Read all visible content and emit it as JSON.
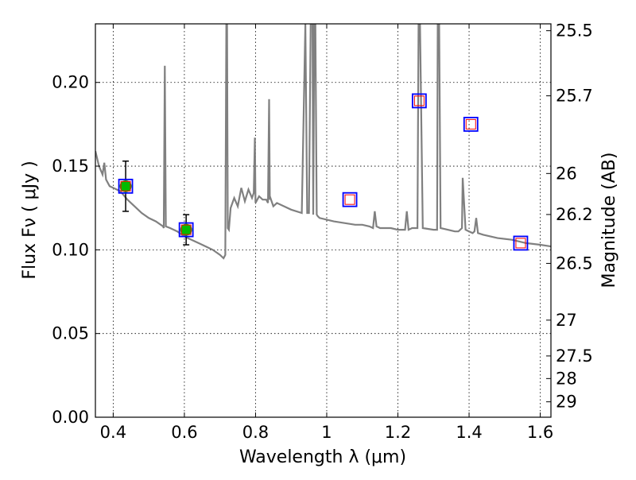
{
  "chart_data": {
    "type": "line",
    "xlabel": "Wavelength  λ (μm)",
    "ylabel": "Flux  Fν  ( μJy )",
    "y2label": "Magnitude (AB)",
    "xlim": [
      0.35,
      1.63
    ],
    "ylim": [
      0.0,
      0.235
    ],
    "grid": true,
    "x_ticks": [
      0.4,
      0.6,
      0.8,
      1.0,
      1.2,
      1.4,
      1.6
    ],
    "x_tick_labels": [
      "0.4",
      "0.6",
      "0.8",
      "1",
      "1.2",
      "1.4",
      "1.6"
    ],
    "y_ticks": [
      0.0,
      0.05,
      0.1,
      0.15,
      0.2
    ],
    "y_tick_labels": [
      "0.00",
      "0.05",
      "0.10",
      "0.15",
      "0.20"
    ],
    "mag_ticks": [
      {
        "label": "25.5",
        "flux": 0.2309
      },
      {
        "label": "25.7",
        "flux": 0.192
      },
      {
        "label": "26",
        "flux": 0.1456
      },
      {
        "label": "26.2",
        "flux": 0.1211
      },
      {
        "label": "26.5",
        "flux": 0.0919
      },
      {
        "label": "27",
        "flux": 0.058
      },
      {
        "label": "27.5",
        "flux": 0.0366
      },
      {
        "label": "28",
        "flux": 0.0231
      },
      {
        "label": "29",
        "flux": 0.0092
      }
    ],
    "colors": {
      "model": "#808080",
      "obs_marker": "#00bb00",
      "box_edge": "#0000ff",
      "inner_box": "#ff0000",
      "errorbar": "#000000"
    },
    "series": [
      {
        "kind": "model-spectrum",
        "x": [
          0.35,
          0.36,
          0.37,
          0.375,
          0.38,
          0.39,
          0.4,
          0.42,
          0.44,
          0.46,
          0.48,
          0.5,
          0.52,
          0.54,
          0.542,
          0.545,
          0.548,
          0.56,
          0.58,
          0.6,
          0.62,
          0.64,
          0.66,
          0.68,
          0.7,
          0.71,
          0.715,
          0.718,
          0.72,
          0.722,
          0.725,
          0.73,
          0.74,
          0.75,
          0.76,
          0.77,
          0.78,
          0.79,
          0.795,
          0.798,
          0.8,
          0.81,
          0.82,
          0.83,
          0.835,
          0.838,
          0.84,
          0.842,
          0.85,
          0.86,
          0.88,
          0.9,
          0.93,
          0.94,
          0.945,
          0.95,
          0.955,
          0.96,
          0.962,
          0.965,
          0.968,
          0.972,
          0.975,
          0.98,
          1.0,
          1.02,
          1.05,
          1.08,
          1.1,
          1.12,
          1.13,
          1.135,
          1.14,
          1.15,
          1.18,
          1.2,
          1.22,
          1.225,
          1.23,
          1.24,
          1.25,
          1.255,
          1.258,
          1.262,
          1.27,
          1.3,
          1.31,
          1.312,
          1.316,
          1.32,
          1.34,
          1.36,
          1.37,
          1.38,
          1.382,
          1.39,
          1.4,
          1.41,
          1.415,
          1.42,
          1.425,
          1.44,
          1.48,
          1.52,
          1.56,
          1.6,
          1.63
        ],
        "y": [
          0.159,
          0.15,
          0.145,
          0.152,
          0.142,
          0.138,
          0.137,
          0.135,
          0.13,
          0.126,
          0.122,
          0.119,
          0.117,
          0.114,
          0.113,
          0.21,
          0.114,
          0.113,
          0.111,
          0.108,
          0.106,
          0.104,
          0.102,
          0.1,
          0.097,
          0.095,
          0.097,
          0.235,
          0.235,
          0.113,
          0.112,
          0.125,
          0.131,
          0.126,
          0.137,
          0.129,
          0.136,
          0.131,
          0.134,
          0.167,
          0.128,
          0.132,
          0.13,
          0.13,
          0.128,
          0.19,
          0.13,
          0.131,
          0.126,
          0.128,
          0.126,
          0.124,
          0.122,
          0.235,
          0.122,
          0.122,
          0.235,
          0.235,
          0.121,
          0.235,
          0.235,
          0.121,
          0.12,
          0.119,
          0.118,
          0.117,
          0.116,
          0.115,
          0.115,
          0.114,
          0.113,
          0.123,
          0.114,
          0.113,
          0.113,
          0.112,
          0.112,
          0.123,
          0.112,
          0.113,
          0.113,
          0.113,
          0.235,
          0.235,
          0.113,
          0.112,
          0.112,
          0.235,
          0.235,
          0.113,
          0.112,
          0.111,
          0.111,
          0.113,
          0.143,
          0.112,
          0.111,
          0.11,
          0.111,
          0.119,
          0.11,
          0.109,
          0.107,
          0.106,
          0.104,
          0.103,
          0.102
        ]
      },
      {
        "kind": "observed",
        "x": [
          0.435,
          0.605
        ],
        "y": [
          0.138,
          0.112
        ],
        "err": [
          0.015,
          0.009
        ]
      },
      {
        "kind": "model-photometry",
        "x": [
          0.435,
          0.605,
          1.065,
          1.26,
          1.405,
          1.545
        ],
        "y": [
          0.138,
          0.112,
          0.13,
          0.189,
          0.175,
          0.104
        ]
      }
    ]
  }
}
